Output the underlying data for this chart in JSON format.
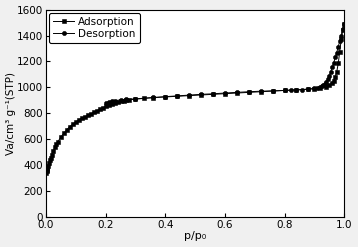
{
  "title": "",
  "xlabel": "p/p₀",
  "ylabel": "Va/cm³ g⁻¹(STP)",
  "xlim": [
    0.0,
    1.0
  ],
  "ylim": [
    0,
    1600
  ],
  "yticks": [
    0,
    200,
    400,
    600,
    800,
    1000,
    1200,
    1400,
    1600
  ],
  "xticks": [
    0.0,
    0.2,
    0.4,
    0.6,
    0.8,
    1.0
  ],
  "legend_labels": [
    "Adsorption",
    "Desorption"
  ],
  "line_color": "#000000",
  "background_color": "#f0f0f0",
  "plot_bg_color": "#ffffff",
  "adsorption_x": [
    0.001,
    0.002,
    0.003,
    0.005,
    0.007,
    0.01,
    0.013,
    0.016,
    0.02,
    0.025,
    0.03,
    0.035,
    0.04,
    0.05,
    0.06,
    0.07,
    0.08,
    0.09,
    0.1,
    0.11,
    0.12,
    0.13,
    0.14,
    0.15,
    0.16,
    0.17,
    0.18,
    0.19,
    0.2,
    0.21,
    0.22,
    0.23,
    0.24,
    0.25,
    0.26,
    0.27,
    0.28,
    0.3,
    0.33,
    0.36,
    0.4,
    0.44,
    0.48,
    0.52,
    0.56,
    0.6,
    0.64,
    0.68,
    0.72,
    0.76,
    0.8,
    0.84,
    0.88,
    0.9,
    0.92,
    0.94,
    0.95,
    0.96,
    0.965,
    0.97,
    0.975,
    0.98,
    0.985,
    0.99,
    0.995,
    0.999
  ],
  "adsorption_y": [
    340,
    355,
    365,
    382,
    398,
    418,
    438,
    458,
    482,
    510,
    538,
    562,
    582,
    618,
    648,
    675,
    698,
    718,
    735,
    750,
    763,
    774,
    785,
    795,
    808,
    820,
    832,
    843,
    854,
    863,
    871,
    878,
    885,
    892,
    897,
    901,
    905,
    910,
    916,
    921,
    927,
    932,
    937,
    942,
    947,
    952,
    957,
    962,
    967,
    972,
    977,
    981,
    986,
    990,
    996,
    1006,
    1016,
    1032,
    1052,
    1080,
    1120,
    1185,
    1275,
    1370,
    1440,
    1490
  ],
  "desorption_x": [
    0.999,
    0.995,
    0.99,
    0.985,
    0.98,
    0.975,
    0.97,
    0.965,
    0.96,
    0.955,
    0.95,
    0.945,
    0.94,
    0.935,
    0.93,
    0.925,
    0.92,
    0.91,
    0.9,
    0.88,
    0.86,
    0.84,
    0.82,
    0.8,
    0.76,
    0.72,
    0.68,
    0.64,
    0.6,
    0.56,
    0.52,
    0.48,
    0.44,
    0.4,
    0.36,
    0.3,
    0.27,
    0.25,
    0.23,
    0.22,
    0.21,
    0.2
  ],
  "desorption_y": [
    1490,
    1452,
    1398,
    1355,
    1315,
    1268,
    1232,
    1190,
    1155,
    1120,
    1090,
    1065,
    1045,
    1028,
    1018,
    1010,
    1005,
    998,
    993,
    988,
    984,
    981,
    979,
    977,
    974,
    971,
    967,
    962,
    957,
    951,
    947,
    941,
    935,
    929,
    923,
    912,
    908,
    904,
    898,
    893,
    888,
    880
  ]
}
